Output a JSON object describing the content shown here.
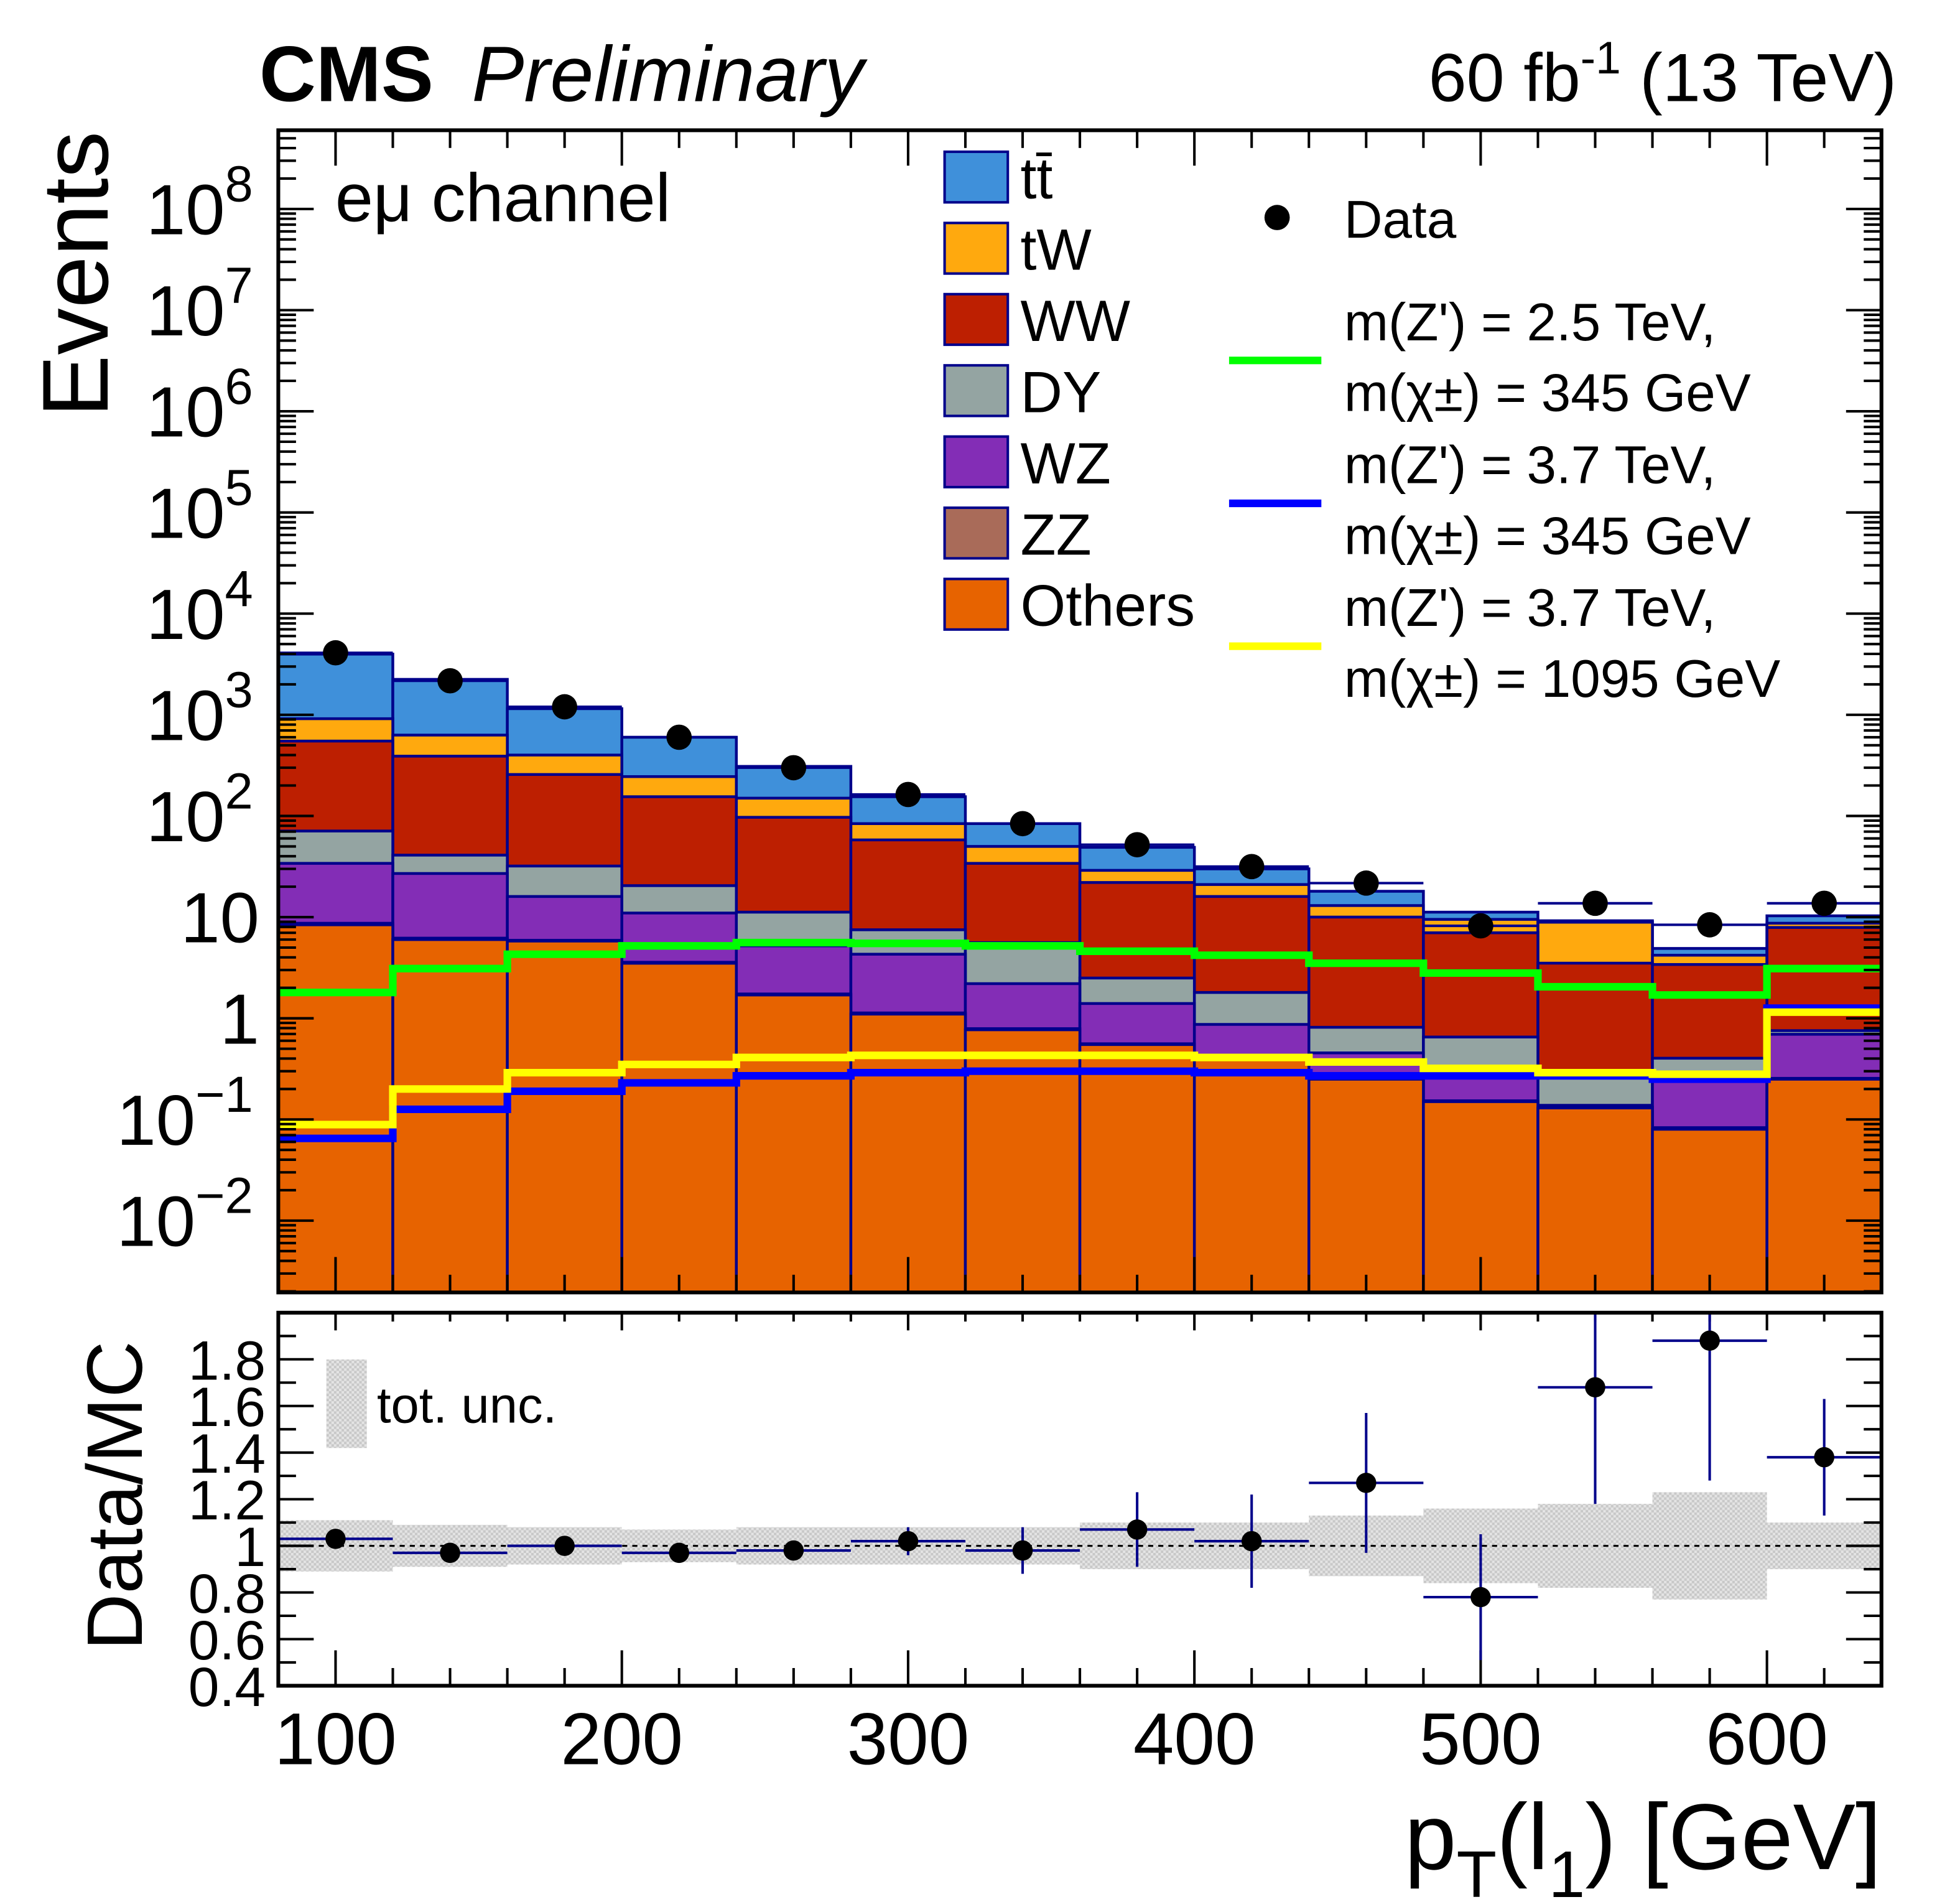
{
  "header": {
    "experiment": "CMS",
    "status": "Preliminary",
    "lumi_prefix": "60 fb",
    "lumi_exp": "-1",
    "lumi_suffix": " (13 TeV)"
  },
  "channel_label": "eμ channel",
  "chart_data": [
    {
      "type": "bar",
      "stacked": true,
      "yscale": "log",
      "ylabel": "Events",
      "xlim": [
        80,
        640
      ],
      "ylim": [
        0.00195,
        600000000
      ],
      "bin_edges": [
        80,
        120,
        160,
        200,
        240,
        280,
        320,
        360,
        400,
        440,
        480,
        520,
        560,
        600,
        640
      ],
      "ytick_labels": [
        {
          "v": 0.01,
          "base": "10",
          "exp": "−2"
        },
        {
          "v": 0.1,
          "base": "10",
          "exp": "−1"
        },
        {
          "v": 1,
          "base": "1",
          "exp": ""
        },
        {
          "v": 10,
          "base": "10",
          "exp": ""
        },
        {
          "v": 100,
          "base": "10",
          "exp": "2"
        },
        {
          "v": 1000,
          "base": "10",
          "exp": "3"
        },
        {
          "v": 10000,
          "base": "10",
          "exp": "4"
        },
        {
          "v": 100000,
          "base": "10",
          "exp": "5"
        },
        {
          "v": 1000000,
          "base": "10",
          "exp": "6"
        },
        {
          "v": 10000000,
          "base": "10",
          "exp": "7"
        },
        {
          "v": 100000000,
          "base": "10",
          "exp": "8"
        }
      ],
      "series": [
        {
          "name": "Others",
          "color": "#e76300",
          "values": [
            8.4,
            6,
            5.8,
            3.5,
            1.7,
            1.1,
            0.77,
            0.55,
            0.41,
            0.25,
            0.15,
            0.13,
            0.08,
            0.25
          ]
        },
        {
          "name": "ZZ",
          "color": "#a96b59",
          "values": [
            0.3,
            0.2,
            0.1,
            0.08,
            0.04,
            0.03,
            0.02,
            0.01,
            0.01,
            0.005,
            0.003,
            0.003,
            0.003,
            0.005
          ]
        },
        {
          "name": "WZ",
          "color": "#832db6",
          "values": [
            25.3,
            20.8,
            10.1,
            7.4,
            3.46,
            3.17,
            1.41,
            0.84,
            0.45,
            0.2,
            0.11,
            0.005,
            0.16,
            0.44
          ]
        },
        {
          "name": "DY",
          "color": "#94a4a2",
          "values": [
            37,
            14,
            16,
            9.5,
            6,
            3.2,
            3.4,
            1.1,
            0.93,
            0.36,
            0.39,
            0.12,
            0.16,
            0.06
          ]
        },
        {
          "name": "WW",
          "color": "#bd1f01",
          "values": [
            479,
            349,
            225,
            134.5,
            85.8,
            50.5,
            28.4,
            19.5,
            14.2,
            9.2,
            6.35,
            3.25,
            3.0,
            7.15
          ]
        },
        {
          "name": "tW",
          "color": "#ffa90e",
          "values": [
            365,
            240,
            143,
            90,
            53,
            26,
            16,
            7,
            5,
            3,
            2.5,
            5.4,
            0.8,
            0.8
          ]
        },
        {
          "name": "tt̄",
          "color": "#3f90da",
          "values": [
            3065,
            1610,
            750,
            355,
            159,
            71,
            34,
            20,
            9,
            5,
            1.7,
            0.3,
            0.7,
            1.6
          ]
        }
      ],
      "data": {
        "name": "Data",
        "values": [
          4100,
          2170,
          1200,
          600,
          300,
          163,
          84,
          52,
          31.6,
          21.7,
          8.2,
          13.7,
          8.4,
          13.7
        ]
      },
      "signals": [
        {
          "label_line1": "m(Z') = 2.5 TeV,",
          "label_line2": "m(χ±) = 345 GeV",
          "color": "#00ff00",
          "values": [
            1.8,
            3.1,
            4.3,
            5.2,
            5.6,
            5.5,
            5.2,
            4.6,
            4.2,
            3.5,
            2.8,
            2.05,
            1.7,
            3.1
          ]
        },
        {
          "label_line1": "m(Z') = 3.7 TeV,",
          "label_line2": "m(χ±) = 345 GeV",
          "color": "#0000ff",
          "values": [
            0.065,
            0.126,
            0.19,
            0.23,
            0.27,
            0.29,
            0.3,
            0.3,
            0.29,
            0.27,
            0.27,
            0.27,
            0.25,
            1.26
          ]
        },
        {
          "label_line1": "m(Z') = 3.7 TeV,",
          "label_line2": "m(χ±) = 1095 GeV",
          "color": "#ffff00",
          "values": [
            0.089,
            0.2,
            0.29,
            0.35,
            0.41,
            0.43,
            0.43,
            0.43,
            0.41,
            0.37,
            0.32,
            0.29,
            0.28,
            1.15
          ]
        }
      ]
    },
    {
      "type": "scatter",
      "ylabel": "Data/MC",
      "xlabel_main": "p",
      "xlabel_sub": "T",
      "xlabel_mid": "(l",
      "xlabel_sub2": "1",
      "xlabel_end": ") [GeV]",
      "xlim": [
        80,
        640
      ],
      "ylim": [
        0.4,
        2.0
      ],
      "xtick_labels": [
        "100",
        "200",
        "300",
        "400",
        "500",
        "600"
      ],
      "xticks": [
        100,
        200,
        300,
        400,
        500,
        600
      ],
      "ytick_labels": [
        "0.4",
        "0.6",
        "0.8",
        "1",
        "1.2",
        "1.4",
        "1.6",
        "1.8"
      ],
      "yticks": [
        0.4,
        0.6,
        0.8,
        1.0,
        1.2,
        1.4,
        1.6,
        1.8
      ],
      "x": [
        100,
        140,
        180,
        220,
        260,
        300,
        340,
        380,
        420,
        460,
        500,
        540,
        580,
        620
      ],
      "ratio": [
        1.03,
        0.97,
        1.0,
        0.97,
        0.98,
        1.02,
        0.98,
        1.07,
        1.02,
        1.27,
        0.78,
        1.68,
        1.88,
        1.38
      ],
      "ratio_err": [
        0.02,
        0.02,
        0.02,
        0.03,
        0.04,
        0.06,
        0.1,
        0.16,
        0.2,
        0.3,
        0.27,
        0.5,
        0.6,
        0.25
      ],
      "unc_band": [
        0.11,
        0.09,
        0.08,
        0.07,
        0.08,
        0.08,
        0.08,
        0.1,
        0.1,
        0.13,
        0.16,
        0.18,
        0.23,
        0.1
      ],
      "unc_label": "tot. unc."
    }
  ]
}
